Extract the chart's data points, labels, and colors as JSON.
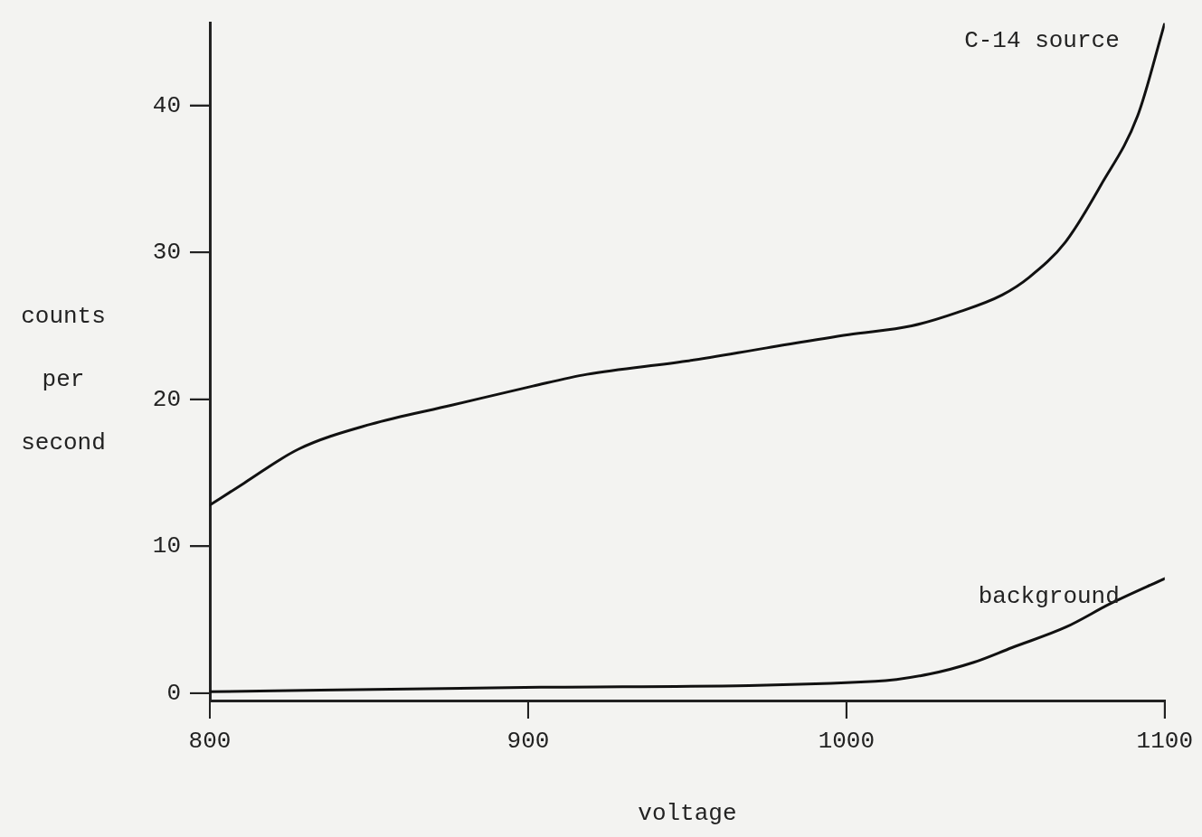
{
  "chart_data": {
    "type": "line",
    "xlabel": "voltage",
    "ylabel": "counts per second",
    "xlim": [
      800,
      1100
    ],
    "xticks": [
      800,
      900,
      1000,
      1100
    ],
    "ylim": [
      -0.5,
      45.6
    ],
    "yticks": [
      0,
      10,
      20,
      30,
      40
    ],
    "grid": false,
    "legend": false,
    "marker": "none",
    "line_style": "solid",
    "series": [
      {
        "name": "C-14 source",
        "color": "#111111",
        "x": [
          800,
          810.8,
          827.8,
          850.5,
          876,
          901.5,
          918.5,
          949.7,
          975,
          1000.7,
          1020.5,
          1034.7,
          1048.9,
          1057.4,
          1068.8,
          1080,
          1091.5,
          1100
        ],
        "values": [
          12.8,
          14.3,
          16.6,
          18.3,
          19.6,
          20.9,
          21.7,
          22.6,
          23.5,
          24.4,
          25.0,
          25.9,
          27.1,
          28.3,
          30.7,
          34.6,
          39.3,
          45.6
        ]
      },
      {
        "name": "background",
        "color": "#111111",
        "x": [
          800,
          904,
          1009,
          1026,
          1040,
          1052,
          1069,
          1083,
          1100
        ],
        "values": [
          0.1,
          0.4,
          0.8,
          1.3,
          2.1,
          3.1,
          4.5,
          6.1,
          7.8
        ]
      }
    ]
  }
}
